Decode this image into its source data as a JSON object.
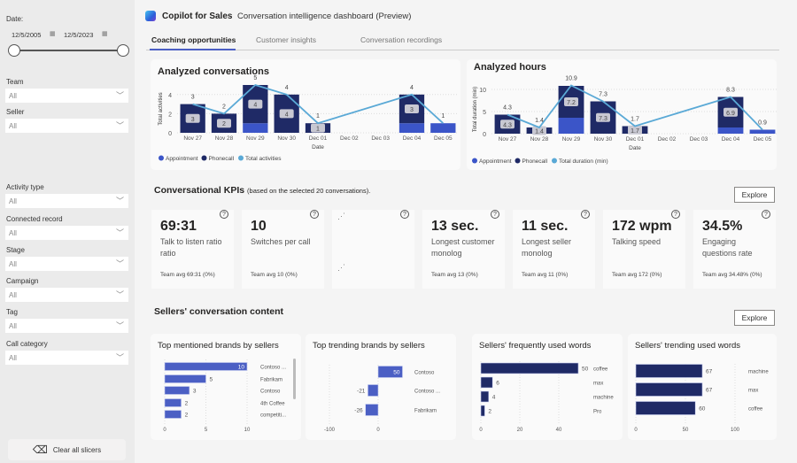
{
  "header": {
    "app_name": "Copilot for Sales",
    "title": "Conversation intelligence dashboard  (Preview)"
  },
  "tabs": [
    {
      "label": "Coaching opportunities",
      "active": true
    },
    {
      "label": "Customer insights"
    },
    {
      "label": "Conversation recordings"
    }
  ],
  "sidebar": {
    "date_label": "Date:",
    "date_start": "12/5/2005",
    "date_end": "12/5/2023",
    "slicers": [
      {
        "label": "Team",
        "value": "All"
      },
      {
        "label": "Seller",
        "value": "All"
      },
      {
        "label": "Activity type",
        "value": "All"
      },
      {
        "label": "Connected record",
        "value": "All"
      },
      {
        "label": "Stage",
        "value": "All"
      },
      {
        "label": "Campaign",
        "value": "All"
      },
      {
        "label": "Tag",
        "value": "All"
      },
      {
        "label": "Call category",
        "value": "All"
      }
    ],
    "clear_label": "Clear all slicers"
  },
  "colors": {
    "appointment": "#3b55c8",
    "phonecall": "#1f2a66",
    "total_line": "#5aa9d6",
    "accent": "#4b5fc4"
  },
  "kpis": {
    "title": "Conversational KPIs",
    "subtitle": "(based on the selected 20 conversations).",
    "explore": "Explore",
    "cards": [
      {
        "value": "69:31",
        "label": "Talk to listen ratio ratio",
        "team": "Team avg 69:31  (0%)"
      },
      {
        "value": "10",
        "label": "Switches per call",
        "team": "Team avg 10  (0%)"
      },
      {
        "value": "",
        "label": "",
        "team": "",
        "loading": true
      },
      {
        "value": "13 sec.",
        "label": "Longest customer monolog",
        "team": "Team avg 13  (0%)"
      },
      {
        "value": "11 sec.",
        "label": "Longest seller monolog",
        "team": "Team avg 11  (0%)"
      },
      {
        "value": "172 wpm",
        "label": "Talking speed",
        "team": "Team avg 172  (0%)"
      },
      {
        "value": "34.5%",
        "label": "Engaging questions rate",
        "team": "Team avg 34.48%  (0%)"
      }
    ]
  },
  "content": {
    "title": "Sellers' conversation content",
    "explore": "Explore"
  },
  "chart_data": [
    {
      "type": "bar+line",
      "title": "Analyzed conversations",
      "xlabel": "Date",
      "ylabel": "Total activities",
      "ylim": [
        0,
        5
      ],
      "yticks": [
        0,
        2,
        4
      ],
      "categories": [
        "Nov 27",
        "Nov 28",
        "Nov 29",
        "Nov 30",
        "Dec 01",
        "Dec 02",
        "Dec 03",
        "Dec 04",
        "Dec 05"
      ],
      "series": [
        {
          "name": "Appointment",
          "values": [
            0,
            0,
            1,
            0,
            0,
            0,
            0,
            1,
            1
          ]
        },
        {
          "name": "Phonecall",
          "values": [
            3,
            2,
            4,
            4,
            1,
            0,
            0,
            3,
            0
          ]
        },
        {
          "name": "Total activities",
          "values": [
            3,
            2,
            5,
            4,
            1,
            null,
            null,
            4,
            1
          ]
        }
      ],
      "legend": "bottom-left",
      "grid": true
    },
    {
      "type": "bar+line",
      "title": "Analyzed hours",
      "xlabel": "Date",
      "ylabel": "Total duration (min)",
      "ylim": [
        0,
        11
      ],
      "yticks": [
        0,
        5,
        10
      ],
      "categories": [
        "Nov 27",
        "Nov 28",
        "Nov 29",
        "Nov 30",
        "Dec 01",
        "Dec 02",
        "Dec 03",
        "Dec 04",
        "Dec 05"
      ],
      "series": [
        {
          "name": "Appointment",
          "values": [
            0,
            0,
            3.6,
            0,
            0,
            0,
            0,
            1.4,
            0.9
          ]
        },
        {
          "name": "Phonecall",
          "values": [
            4.3,
            1.4,
            7.2,
            7.3,
            1.7,
            0,
            0,
            6.9,
            0
          ]
        },
        {
          "name": "Total duration (min)",
          "values": [
            4.3,
            1.4,
            10.9,
            7.3,
            1.7,
            null,
            null,
            8.3,
            0.9
          ]
        }
      ],
      "legend": "bottom-left",
      "grid": true
    },
    {
      "type": "bar",
      "orientation": "horizontal",
      "title": "Top mentioned brands by sellers",
      "categories": [
        "Contoso ...",
        "Fabrikam",
        "Contoso",
        "4th Coffee",
        "competiti..."
      ],
      "values": [
        10,
        5,
        3,
        2,
        2
      ],
      "xticks": [
        0,
        5,
        10
      ]
    },
    {
      "type": "bar",
      "orientation": "horizontal",
      "title": "Top trending brands by sellers",
      "categories": [
        "Contoso",
        "Contoso ...",
        "Fabrikam"
      ],
      "values": [
        50,
        -21,
        -26
      ],
      "xticks": [
        -100,
        0
      ]
    },
    {
      "type": "bar",
      "orientation": "horizontal",
      "title": "Sellers' frequently used words",
      "categories": [
        "coffee",
        "max",
        "machine",
        "Pro"
      ],
      "values": [
        50,
        6,
        4,
        2
      ],
      "xticks": [
        0,
        20,
        40
      ]
    },
    {
      "type": "bar",
      "orientation": "horizontal",
      "title": "Sellers' trending used words",
      "categories": [
        "machine",
        "max",
        "coffee"
      ],
      "values": [
        67,
        67,
        60
      ],
      "xticks": [
        0,
        50,
        100
      ]
    }
  ]
}
